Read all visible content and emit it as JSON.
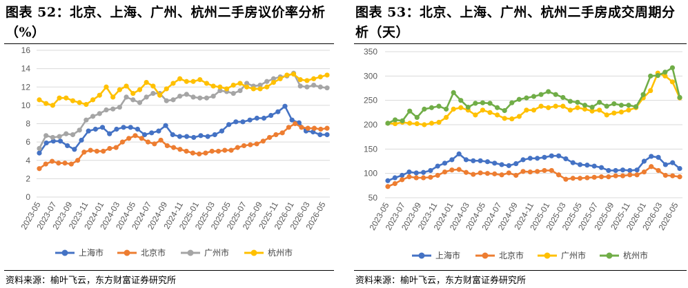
{
  "chart_data": [
    {
      "type": "line",
      "title": "图表 52：北京、上海、广州、杭州二手房议价率分析（%）",
      "source": "资料来源：榆叶飞云，东方财富证券研究所",
      "ylim": [
        0,
        16
      ],
      "yticks": [
        "0",
        "2",
        "4",
        "6",
        "8",
        "10",
        "12",
        "14",
        "16"
      ],
      "x_labels": [
        "2023-05",
        "2023-07",
        "2023-09",
        "2023-11",
        "2024-01",
        "2024-03",
        "2024-05",
        "2024-07",
        "2024-09",
        "2024-11",
        "2025-01",
        "2025-03",
        "2025-05",
        "2025-07",
        "2025-09",
        "2025-11",
        "2026-01",
        "2026-03",
        "2026-05"
      ],
      "grid": true,
      "legend": "bottom",
      "series": [
        {
          "name": "上海市",
          "color": "#4472C4",
          "values": [
            4.8,
            5.9,
            6.1,
            6.1,
            5.6,
            5.2,
            6.2,
            7.2,
            7.4,
            7.6,
            6.9,
            7.4,
            7.6,
            7.6,
            7.4,
            6.8,
            7.0,
            7.2,
            7.8,
            6.8,
            6.6,
            6.6,
            6.5,
            6.7,
            6.6,
            6.8,
            7.2,
            7.9,
            8.2,
            8.2,
            8.4,
            8.6,
            8.6,
            8.9,
            9.3,
            9.9,
            8.4,
            8.1,
            7.2,
            7.1,
            6.8,
            6.8
          ]
        },
        {
          "name": "北京市",
          "color": "#ED7D31",
          "values": [
            3.1,
            3.6,
            3.9,
            3.7,
            3.7,
            3.6,
            4.0,
            4.9,
            5.1,
            5.0,
            5.0,
            5.3,
            5.4,
            6.0,
            6.4,
            6.7,
            6.4,
            6.0,
            5.8,
            6.2,
            5.6,
            5.4,
            5.2,
            5.0,
            4.8,
            4.7,
            4.8,
            5.0,
            5.0,
            5.1,
            5.1,
            5.4,
            5.6,
            5.7,
            5.8,
            6.1,
            6.5,
            6.8,
            7.0,
            7.6,
            8.0,
            7.6,
            7.5,
            7.5,
            7.4,
            7.5
          ]
        },
        {
          "name": "广州市",
          "color": "#A5A5A5",
          "values": [
            5.3,
            6.7,
            6.5,
            6.6,
            6.9,
            6.8,
            7.3,
            8.4,
            8.8,
            9.1,
            9.5,
            9.6,
            9.8,
            10.9,
            10.6,
            10.3,
            10.9,
            11.3,
            11.3,
            10.5,
            10.6,
            11.0,
            11.2,
            10.9,
            10.8,
            10.8,
            11.0,
            11.6,
            11.5,
            11.3,
            11.6,
            12.4,
            12.1,
            12.2,
            12.6,
            12.9,
            13.1,
            13.2,
            13.5,
            12.1,
            12.0,
            12.2,
            12.0,
            11.9
          ]
        },
        {
          "name": "杭州市",
          "color": "#FFC000",
          "values": [
            10.6,
            10.2,
            10.0,
            10.8,
            10.8,
            10.5,
            10.3,
            10.1,
            10.6,
            11.1,
            12.0,
            10.9,
            11.7,
            12.1,
            11.3,
            11.7,
            12.5,
            12.1,
            11.1,
            11.8,
            12.4,
            12.9,
            12.6,
            12.6,
            12.8,
            12.4,
            12.1,
            12.0,
            11.8,
            12.2,
            12.4,
            12.0,
            11.8,
            11.8,
            12.0,
            12.5,
            12.9,
            13.3,
            13.4,
            12.8,
            12.7,
            12.9,
            13.1,
            13.3
          ]
        }
      ]
    },
    {
      "type": "line",
      "title": "图表 53：北京、上海、广州、杭州二手房成交周期分析（天）",
      "source": "资料来源：榆叶飞云，东方财富证券研究所",
      "ylim": [
        50,
        350
      ],
      "yticks": [
        "50",
        "100",
        "150",
        "200",
        "250",
        "300",
        "350"
      ],
      "x_labels": [
        "2023-05",
        "2023-07",
        "2023-09",
        "2023-11",
        "2024-01",
        "2024-03",
        "2024-05",
        "2024-07",
        "2024-09",
        "2024-11",
        "2025-01",
        "2025-03",
        "2025-05",
        "2025-07",
        "2025-09",
        "2025-11",
        "2026-01",
        "2026-03",
        "2026-05"
      ],
      "grid": true,
      "legend": "bottom",
      "series": [
        {
          "name": "上海市",
          "color": "#4472C4",
          "values": [
            85,
            91,
            96,
            103,
            101,
            102,
            106,
            115,
            121,
            128,
            140,
            128,
            126,
            126,
            124,
            121,
            118,
            116,
            120,
            128,
            131,
            131,
            133,
            136,
            136,
            130,
            122,
            118,
            117,
            115,
            112,
            106,
            106,
            107,
            106,
            107,
            125,
            135,
            133,
            118,
            122,
            110
          ]
        },
        {
          "name": "北京市",
          "color": "#ED7D31",
          "values": [
            73,
            79,
            87,
            93,
            91,
            91,
            92,
            96,
            103,
            107,
            108,
            102,
            98,
            101,
            100,
            99,
            97,
            101,
            96,
            104,
            103,
            104,
            106,
            106,
            97,
            88,
            90,
            90,
            91,
            92,
            93,
            93,
            95,
            95,
            97,
            97,
            103,
            114,
            106,
            96,
            95,
            93
          ]
        },
        {
          "name": "广州市",
          "color": "#FFC000",
          "values": [
            203,
            202,
            205,
            203,
            202,
            200,
            203,
            205,
            215,
            232,
            235,
            230,
            220,
            230,
            225,
            220,
            213,
            212,
            217,
            230,
            230,
            238,
            235,
            238,
            238,
            230,
            235,
            232,
            228,
            230,
            220,
            224,
            226,
            230,
            235,
            255,
            270,
            306,
            300,
            288,
            255
          ]
        },
        {
          "name": "杭州市",
          "color": "#70AD47",
          "values": [
            203,
            210,
            208,
            228,
            215,
            232,
            235,
            238,
            232,
            266,
            250,
            236,
            244,
            245,
            244,
            235,
            229,
            245,
            252,
            255,
            258,
            262,
            268,
            262,
            256,
            248,
            246,
            240,
            236,
            246,
            238,
            243,
            240,
            240,
            237,
            262,
            300,
            301,
            308,
            317,
            256
          ]
        }
      ]
    }
  ]
}
